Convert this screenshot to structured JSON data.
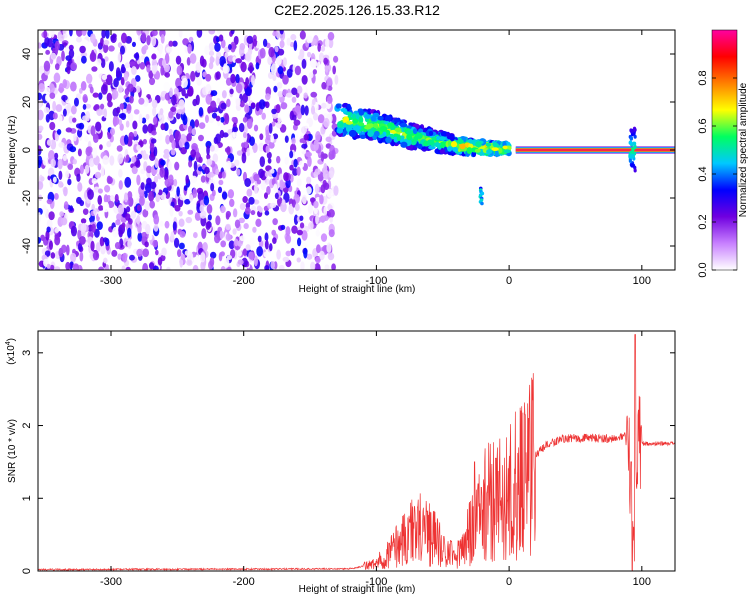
{
  "chart_data": [
    {
      "type": "heatmap",
      "title": "C2E2.2025.126.15.33.R12",
      "xlabel": "Height of straight line (km)",
      "ylabel": "Frequency (Hz)",
      "xlim": [
        -355,
        125
      ],
      "ylim": [
        -50,
        50
      ],
      "xticks": [
        "-300",
        "-200",
        "-100",
        "0",
        "100"
      ],
      "yticks": [
        "-40",
        "-20",
        "0",
        "20",
        "40"
      ],
      "colorbar": {
        "label": "Normalized spectral amplitude",
        "range": [
          0,
          1
        ],
        "ticks": [
          "0.0",
          "0.2",
          "0.4",
          "0.6",
          "0.8"
        ],
        "colors": [
          "#ffffff",
          "#c880ff",
          "#7000e0",
          "#0000ff",
          "#00c8ff",
          "#00ff60",
          "#ffff00",
          "#ff8000",
          "#ff0000",
          "#ff00a0"
        ]
      },
      "features": {
        "noise_region_x": [
          -355,
          -130
        ],
        "chirp_trend": [
          {
            "x": -130,
            "y": 13
          },
          {
            "x": -100,
            "y": 10
          },
          {
            "x": -75,
            "y": 6
          },
          {
            "x": -50,
            "y": 3
          },
          {
            "x": -25,
            "y": 1
          },
          {
            "x": 0,
            "y": 0.5
          }
        ],
        "carrier_line": {
          "x": [
            5,
            125
          ],
          "y": 0,
          "width_hz": 3
        },
        "burst_x": 93
      }
    },
    {
      "type": "line",
      "xlabel": "Height of straight line (km)",
      "ylabel": "SNR (10 * v/v)",
      "y_multiplier": "(x10",
      "y_multiplier_exp": "4",
      "multiplier_close": ")",
      "xlim": [
        -355,
        125
      ],
      "ylim": [
        0,
        3.3
      ],
      "xticks": [
        "-300",
        "-200",
        "-100",
        "0",
        "100"
      ],
      "yticks": [
        "0",
        "1",
        "2",
        "3"
      ],
      "series": [
        {
          "color": "#ee3333",
          "envelope": [
            {
              "x": -355,
              "y": 0.02
            },
            {
              "x": -120,
              "y": 0.03
            },
            {
              "x": -100,
              "y": 0.1
            },
            {
              "x": -85,
              "y": 0.35
            },
            {
              "x": -70,
              "y": 0.6
            },
            {
              "x": -60,
              "y": 0.55
            },
            {
              "x": -50,
              "y": 0.3
            },
            {
              "x": -40,
              "y": 0.2
            },
            {
              "x": -30,
              "y": 0.5
            },
            {
              "x": -20,
              "y": 0.9
            },
            {
              "x": -10,
              "y": 1.0
            },
            {
              "x": 0,
              "y": 1.05
            },
            {
              "x": 10,
              "y": 1.35
            },
            {
              "x": 20,
              "y": 1.6
            },
            {
              "x": 30,
              "y": 1.75
            },
            {
              "x": 40,
              "y": 1.82
            },
            {
              "x": 60,
              "y": 1.83
            },
            {
              "x": 80,
              "y": 1.82
            },
            {
              "x": 90,
              "y": 1.85
            },
            {
              "x": 93,
              "y": 0.05
            },
            {
              "x": 97,
              "y": 1.9
            },
            {
              "x": 100,
              "y": 1.75
            },
            {
              "x": 125,
              "y": 1.75
            }
          ],
          "peaks": [
            {
              "x": -69,
              "y": 0.88
            },
            {
              "x": -62,
              "y": 0.82
            },
            {
              "x": -44,
              "y": 0.42
            },
            {
              "x": -26,
              "y": 1.5
            },
            {
              "x": -21,
              "y": 1.15
            },
            {
              "x": -10,
              "y": 1.55
            },
            {
              "x": 12,
              "y": 2.15
            },
            {
              "x": 92,
              "y": 1.5
            },
            {
              "x": 95,
              "y": 3.25
            }
          ]
        }
      ]
    }
  ]
}
